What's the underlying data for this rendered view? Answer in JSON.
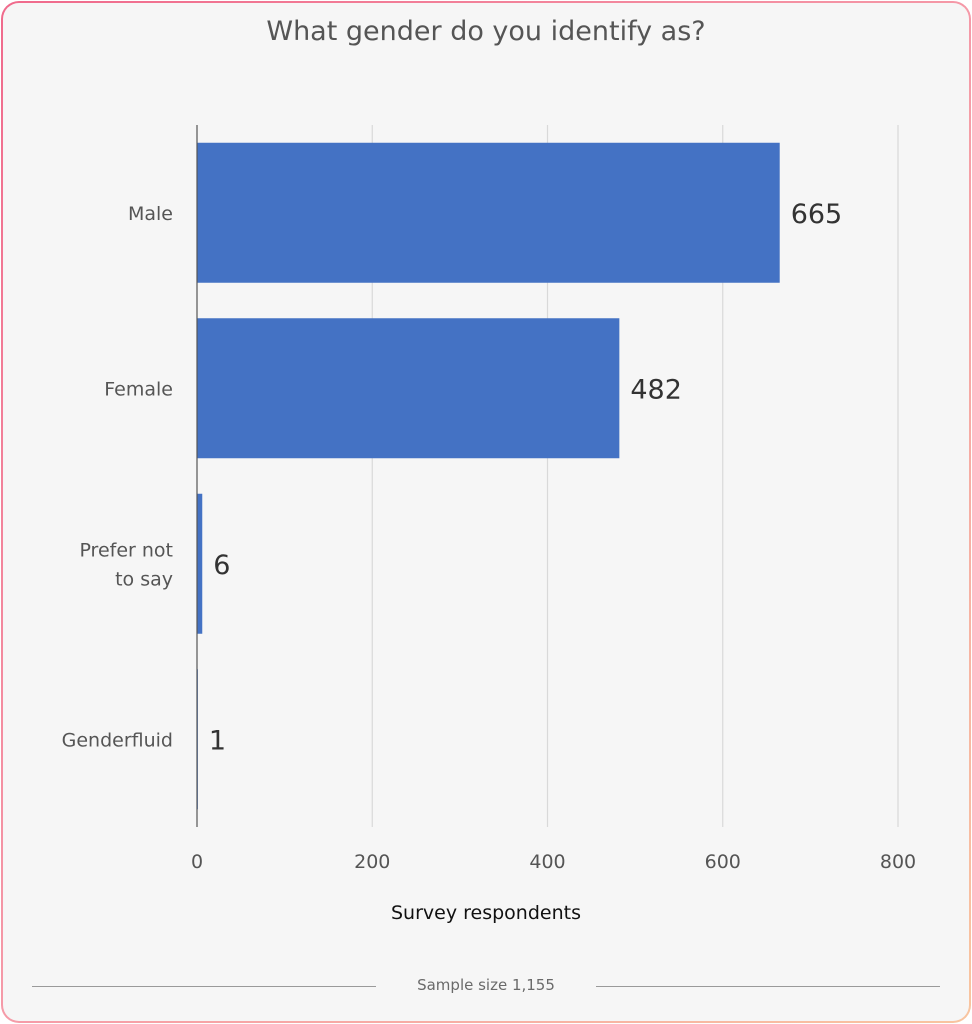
{
  "chart_data": {
    "type": "bar",
    "orientation": "horizontal",
    "title": "What gender do you identify as?",
    "categories": [
      "Male",
      "Female",
      "Prefer not to say",
      "Genderfluid"
    ],
    "values": [
      665,
      482,
      6,
      1
    ],
    "data_labels": [
      "665",
      "482",
      "6",
      "1"
    ],
    "xlabel": "Survey respondents",
    "xlim": [
      0,
      800
    ],
    "xticks": [
      0,
      200,
      400,
      600,
      800
    ],
    "grid": true,
    "bar_color": "#4472c4",
    "grid_color": "#d9d9d9",
    "footer": "Sample size 1,155"
  }
}
